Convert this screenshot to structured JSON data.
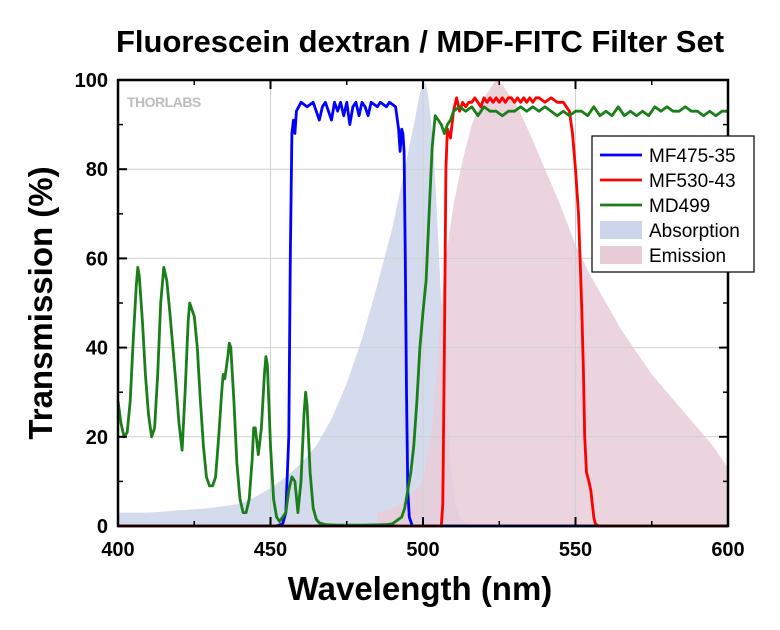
{
  "chart_data": {
    "type": "line",
    "title": "Fluorescein dextran / MDF-FITC Filter Set",
    "xlabel": "Wavelength (nm)",
    "ylabel": "Transmission (%)",
    "xlim": [
      400,
      600
    ],
    "ylim": [
      0,
      100
    ],
    "x_ticks": [
      400,
      450,
      500,
      550,
      600
    ],
    "y_ticks": [
      0,
      20,
      40,
      60,
      80,
      100
    ],
    "grid": true,
    "legend_position": "top-right",
    "logo": "THORLABS",
    "series": [
      {
        "name": "MF475-35",
        "kind": "line",
        "color": "#0000ff",
        "points": [
          [
            400,
            0
          ],
          [
            452,
            0
          ],
          [
            454,
            0.5
          ],
          [
            455,
            3
          ],
          [
            456,
            20
          ],
          [
            456.5,
            60
          ],
          [
            457,
            88
          ],
          [
            457.5,
            91
          ],
          [
            458,
            88
          ],
          [
            458.5,
            93
          ],
          [
            460,
            95
          ],
          [
            462,
            94
          ],
          [
            464,
            95
          ],
          [
            466,
            91
          ],
          [
            467,
            94
          ],
          [
            468,
            95
          ],
          [
            470,
            91
          ],
          [
            471,
            95
          ],
          [
            472,
            93
          ],
          [
            473,
            95
          ],
          [
            474,
            92
          ],
          [
            475,
            95
          ],
          [
            476,
            90
          ],
          [
            477,
            94
          ],
          [
            478,
            95
          ],
          [
            479,
            92
          ],
          [
            480,
            95
          ],
          [
            481,
            94
          ],
          [
            482,
            92
          ],
          [
            483,
            95
          ],
          [
            485,
            94
          ],
          [
            486,
            95
          ],
          [
            488,
            94
          ],
          [
            489,
            95
          ],
          [
            491,
            94
          ],
          [
            492,
            89
          ],
          [
            492.5,
            84
          ],
          [
            493,
            89
          ],
          [
            493.4,
            88
          ],
          [
            493.8,
            84
          ],
          [
            494.2,
            60
          ],
          [
            494.6,
            30
          ],
          [
            495,
            8
          ],
          [
            495.5,
            2
          ],
          [
            496.5,
            0
          ],
          [
            600,
            0
          ]
        ]
      },
      {
        "name": "MF530-43",
        "kind": "line",
        "color": "#ff0000",
        "points": [
          [
            400,
            0
          ],
          [
            506,
            0
          ],
          [
            506.5,
            5
          ],
          [
            507,
            40
          ],
          [
            507.5,
            80
          ],
          [
            508,
            89
          ],
          [
            509,
            87
          ],
          [
            510,
            93
          ],
          [
            511,
            96
          ],
          [
            512,
            93
          ],
          [
            513,
            95
          ],
          [
            514,
            94
          ],
          [
            515,
            95
          ],
          [
            516,
            95
          ],
          [
            517,
            96
          ],
          [
            518,
            95
          ],
          [
            519,
            94
          ],
          [
            520,
            96
          ],
          [
            521,
            95
          ],
          [
            522,
            96
          ],
          [
            523,
            95
          ],
          [
            524,
            96
          ],
          [
            525,
            95
          ],
          [
            526,
            96
          ],
          [
            527,
            95
          ],
          [
            528,
            96
          ],
          [
            529,
            96
          ],
          [
            530,
            95
          ],
          [
            531,
            96
          ],
          [
            532,
            95
          ],
          [
            533,
            96
          ],
          [
            534,
            95
          ],
          [
            535,
            96
          ],
          [
            536,
            95
          ],
          [
            537,
            96
          ],
          [
            538,
            96
          ],
          [
            540,
            95
          ],
          [
            542,
            96
          ],
          [
            544,
            95
          ],
          [
            546,
            95
          ],
          [
            548,
            93
          ],
          [
            549,
            88
          ],
          [
            550,
            80
          ],
          [
            551,
            70
          ],
          [
            552,
            50
          ],
          [
            552.6,
            35
          ],
          [
            553,
            20
          ],
          [
            553.6,
            12
          ],
          [
            554.4,
            10
          ],
          [
            555,
            8
          ],
          [
            555.5,
            5
          ],
          [
            556,
            2
          ],
          [
            556.5,
            0.5
          ],
          [
            557.5,
            0
          ],
          [
            600,
            0
          ]
        ]
      },
      {
        "name": "MD499",
        "kind": "line",
        "color": "#1a7f1a",
        "points": [
          [
            400,
            28
          ],
          [
            401,
            23
          ],
          [
            402,
            20
          ],
          [
            403,
            21
          ],
          [
            404,
            28
          ],
          [
            405,
            42
          ],
          [
            406,
            54
          ],
          [
            406.5,
            58
          ],
          [
            407,
            56
          ],
          [
            408,
            46
          ],
          [
            409,
            34
          ],
          [
            410,
            25
          ],
          [
            411,
            20
          ],
          [
            412,
            22
          ],
          [
            413,
            34
          ],
          [
            414,
            50
          ],
          [
            415,
            58
          ],
          [
            416,
            55
          ],
          [
            417,
            48
          ],
          [
            418,
            40
          ],
          [
            419,
            32
          ],
          [
            420,
            23
          ],
          [
            421,
            17
          ],
          [
            422,
            30
          ],
          [
            423,
            46
          ],
          [
            423.5,
            50
          ],
          [
            424,
            49
          ],
          [
            425,
            47
          ],
          [
            426,
            40
          ],
          [
            427,
            28
          ],
          [
            428,
            18
          ],
          [
            429,
            11
          ],
          [
            430,
            9
          ],
          [
            431,
            9
          ],
          [
            432,
            11
          ],
          [
            433,
            20
          ],
          [
            434,
            30
          ],
          [
            434.5,
            34
          ],
          [
            435,
            33
          ],
          [
            436,
            38
          ],
          [
            436.5,
            41
          ],
          [
            437,
            40
          ],
          [
            438,
            28
          ],
          [
            439,
            14
          ],
          [
            440,
            6
          ],
          [
            441,
            3
          ],
          [
            442,
            3
          ],
          [
            443,
            6
          ],
          [
            444,
            15
          ],
          [
            444.5,
            22
          ],
          [
            445,
            22
          ],
          [
            446,
            16
          ],
          [
            447,
            22
          ],
          [
            448,
            34
          ],
          [
            448.5,
            38
          ],
          [
            449,
            36
          ],
          [
            450,
            18
          ],
          [
            451,
            6
          ],
          [
            452,
            2
          ],
          [
            453,
            1
          ],
          [
            454,
            2
          ],
          [
            455,
            3
          ],
          [
            456,
            8
          ],
          [
            457,
            11
          ],
          [
            458,
            10
          ],
          [
            459,
            3
          ],
          [
            460,
            10
          ],
          [
            461,
            25
          ],
          [
            461.5,
            30
          ],
          [
            462,
            27
          ],
          [
            463,
            12
          ],
          [
            464,
            4
          ],
          [
            465,
            1.5
          ],
          [
            466,
            0.7
          ],
          [
            468,
            0.3
          ],
          [
            472,
            0.2
          ],
          [
            480,
            0.2
          ],
          [
            488,
            0.3
          ],
          [
            490,
            0.5
          ],
          [
            491,
            1
          ],
          [
            492,
            1.5
          ],
          [
            493,
            2
          ],
          [
            494,
            4
          ],
          [
            495,
            8
          ],
          [
            496,
            12
          ],
          [
            497,
            18
          ],
          [
            498,
            28
          ],
          [
            499,
            40
          ],
          [
            500,
            48
          ],
          [
            501,
            55
          ],
          [
            502,
            70
          ],
          [
            503,
            85
          ],
          [
            504,
            92
          ],
          [
            505,
            91
          ],
          [
            506,
            90
          ],
          [
            507,
            88
          ],
          [
            508,
            90
          ],
          [
            509,
            91
          ],
          [
            510,
            93
          ],
          [
            512,
            94
          ],
          [
            514,
            93
          ],
          [
            516,
            94
          ],
          [
            518,
            92
          ],
          [
            520,
            94
          ],
          [
            522,
            93
          ],
          [
            524,
            93
          ],
          [
            526,
            92
          ],
          [
            528,
            93
          ],
          [
            530,
            93
          ],
          [
            532,
            94
          ],
          [
            534,
            93
          ],
          [
            536,
            94
          ],
          [
            538,
            93
          ],
          [
            540,
            94
          ],
          [
            542,
            93
          ],
          [
            544,
            92
          ],
          [
            546,
            93
          ],
          [
            548,
            92
          ],
          [
            550,
            93
          ],
          [
            552,
            93
          ],
          [
            554,
            92
          ],
          [
            556,
            94
          ],
          [
            558,
            92
          ],
          [
            560,
            93
          ],
          [
            562,
            92
          ],
          [
            564,
            94
          ],
          [
            566,
            92
          ],
          [
            568,
            93
          ],
          [
            570,
            92
          ],
          [
            572,
            93
          ],
          [
            574,
            92
          ],
          [
            576,
            94
          ],
          [
            578,
            93
          ],
          [
            580,
            94
          ],
          [
            582,
            93
          ],
          [
            584,
            93
          ],
          [
            586,
            94
          ],
          [
            588,
            93
          ],
          [
            590,
            93
          ],
          [
            592,
            92
          ],
          [
            594,
            93
          ],
          [
            596,
            92
          ],
          [
            598,
            93
          ],
          [
            600,
            93
          ]
        ]
      },
      {
        "name": "Absorption",
        "kind": "area",
        "color": "#cdd5ea",
        "points": [
          [
            400,
            3
          ],
          [
            410,
            3
          ],
          [
            420,
            3.5
          ],
          [
            430,
            4
          ],
          [
            440,
            5
          ],
          [
            445,
            6.5
          ],
          [
            450,
            8.5
          ],
          [
            455,
            11
          ],
          [
            460,
            14
          ],
          [
            465,
            18
          ],
          [
            470,
            24
          ],
          [
            475,
            32
          ],
          [
            480,
            42
          ],
          [
            485,
            54
          ],
          [
            490,
            67
          ],
          [
            494,
            80
          ],
          [
            497,
            90
          ],
          [
            499,
            97
          ],
          [
            500,
            100
          ],
          [
            501,
            99
          ],
          [
            502,
            95
          ],
          [
            503,
            88
          ],
          [
            504,
            78
          ],
          [
            505,
            64
          ],
          [
            506,
            50
          ],
          [
            507,
            36
          ],
          [
            508,
            24
          ],
          [
            509,
            14
          ],
          [
            510,
            8
          ],
          [
            511,
            4
          ],
          [
            512,
            2
          ],
          [
            514,
            0.5
          ],
          [
            516,
            0
          ]
        ]
      },
      {
        "name": "Emission",
        "kind": "area",
        "color": "#e8cdd8",
        "points": [
          [
            485,
            3
          ],
          [
            490,
            4
          ],
          [
            495,
            6
          ],
          [
            500,
            10
          ],
          [
            503,
            22
          ],
          [
            505,
            40
          ],
          [
            507,
            58
          ],
          [
            510,
            72
          ],
          [
            513,
            82
          ],
          [
            516,
            90
          ],
          [
            519,
            95
          ],
          [
            522,
            98
          ],
          [
            524,
            100
          ],
          [
            526,
            99
          ],
          [
            528,
            97
          ],
          [
            531,
            94
          ],
          [
            535,
            88
          ],
          [
            540,
            80
          ],
          [
            545,
            72
          ],
          [
            550,
            63
          ],
          [
            555,
            56
          ],
          [
            560,
            50
          ],
          [
            565,
            44
          ],
          [
            570,
            39
          ],
          [
            575,
            34
          ],
          [
            580,
            30
          ],
          [
            585,
            26
          ],
          [
            590,
            22
          ],
          [
            595,
            18
          ],
          [
            600,
            13
          ]
        ]
      }
    ]
  }
}
